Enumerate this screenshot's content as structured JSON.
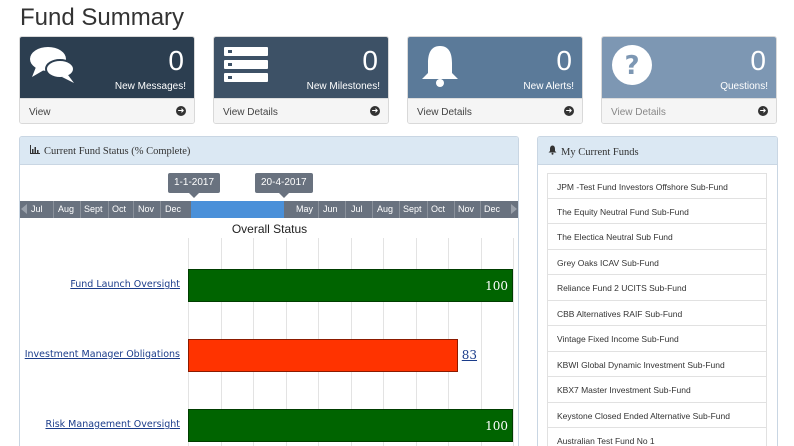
{
  "page": {
    "title": "Fund Summary"
  },
  "cards": [
    {
      "icon": "comments-icon",
      "count": "0",
      "label": "New Messages!",
      "link": "View",
      "color": "#2c3e50"
    },
    {
      "icon": "list-icon",
      "count": "0",
      "label": "New Milestones!",
      "link": "View Details",
      "color": "#3d5166"
    },
    {
      "icon": "bell-icon",
      "count": "0",
      "label": "New Alerts!",
      "link": "View Details",
      "color": "#5b7a99"
    },
    {
      "icon": "question-icon",
      "count": "0",
      "label": "Questions!",
      "link": "View Details",
      "color": "#7d97b3"
    }
  ],
  "status_panel": {
    "title": "Current Fund Status (% Complete)",
    "start_tag": "1-1-2017",
    "end_tag": "20-4-2017",
    "months": [
      "Jul",
      "Aug",
      "Sept",
      "Oct",
      "Nov",
      "Dec",
      "May",
      "Jun",
      "Jul",
      "Aug",
      "Sept",
      "Oct",
      "Nov",
      "Dec"
    ],
    "chart_title": "Overall Status"
  },
  "chart_data": {
    "type": "bar",
    "title": "Overall Status",
    "categories": [
      "Fund Launch Oversight",
      "Investment Manager Obligations",
      "Risk Management Oversight"
    ],
    "values": [
      100,
      83,
      100
    ],
    "value_labels": [
      "100",
      "83",
      "100"
    ],
    "colors": [
      "#006400",
      "#ff3300",
      "#006400"
    ],
    "xlim": [
      0,
      100
    ]
  },
  "funds_panel": {
    "title": "My Current Funds",
    "items": [
      "JPM -Test Fund Investors Offshore Sub-Fund",
      "The Equity Neutral Fund Sub-Fund",
      "The Electica Neutral Sub Fund",
      "Grey Oaks ICAV Sub-Fund",
      "Reliance Fund 2 UCITS Sub-Fund",
      "CBB Alternatives RAIF Sub-Fund",
      "Vintage Fixed Income Sub-Fund",
      "KBWI Global Dynamic Investment Sub-Fund",
      "KBX7 Master Investment Sub-Fund",
      "Keystone Closed Ended Alternative Sub-Fund",
      "Australian Test Fund No 1"
    ]
  }
}
